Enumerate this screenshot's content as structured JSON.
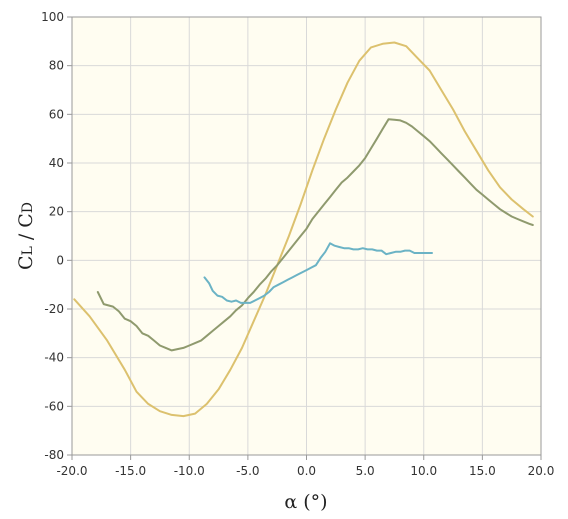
{
  "chart_data": {
    "type": "line",
    "title": "",
    "xlabel": "α (°)",
    "ylabel_main": "C",
    "ylabel_sub1": "L",
    "ylabel_sep": " / C",
    "ylabel_sub2": "D",
    "xlim": [
      -20,
      20
    ],
    "ylim": [
      -80,
      100
    ],
    "x_ticks": [
      "-20.0",
      "-15.0",
      "-10.0",
      "-5.0",
      "0.0",
      "5.0",
      "10.0",
      "15.0",
      "20.0"
    ],
    "y_ticks": [
      "100",
      "80",
      "60",
      "40",
      "20",
      "0",
      "-20",
      "-40",
      "-60",
      "-80"
    ],
    "grid": true,
    "background_color": "#fffdf1",
    "grid_color": "#d9d9d9",
    "series": [
      {
        "color": "#dcc16e",
        "x": [
          -19.8,
          -18.5,
          -17,
          -15.5,
          -14.5,
          -13.5,
          -12.5,
          -11.5,
          -10.5,
          -9.5,
          -8.5,
          -7.5,
          -6.5,
          -5.5,
          -4.5,
          -3.5,
          -2.5,
          -1.5,
          -0.5,
          0.5,
          1.5,
          2.5,
          3.5,
          4.5,
          5.5,
          6.5,
          7.5,
          8.5,
          9.5,
          10.5,
          11.5,
          12.5,
          13.5,
          14.5,
          15.5,
          16.5,
          17.5,
          18.5,
          19.3
        ],
        "y": [
          -16,
          -23,
          -33,
          -45,
          -54,
          -59,
          -62,
          -63.5,
          -64,
          -63,
          -59,
          -53,
          -45,
          -36,
          -25,
          -14,
          -2,
          10,
          23,
          37,
          50,
          62,
          73,
          82,
          87.5,
          89,
          89.5,
          88,
          83,
          78,
          70,
          62,
          53,
          45,
          37,
          30,
          25,
          21,
          18
        ]
      },
      {
        "color": "#8f9a6e",
        "x": [
          -17.8,
          -17.3,
          -16.5,
          -16,
          -15.5,
          -15,
          -14.5,
          -14,
          -13.5,
          -13,
          -12.5,
          -12,
          -11.5,
          -11,
          -10.5,
          -10,
          -9.5,
          -9,
          -8.5,
          -8,
          -7.5,
          -7,
          -6.5,
          -6,
          -5.5,
          -5,
          -4.5,
          -4,
          -3.5,
          -3,
          -2.5,
          -2,
          -1.5,
          -1,
          -0.5,
          0,
          0.5,
          1,
          1.5,
          2,
          2.5,
          3,
          3.5,
          4,
          4.5,
          5,
          5.5,
          6,
          6.5,
          7,
          7.5,
          8,
          8.5,
          9,
          9.5,
          10,
          10.5,
          11,
          11.5,
          12,
          12.5,
          13,
          13.5,
          14,
          14.5,
          15,
          15.5,
          16,
          16.5,
          17,
          17.5,
          18,
          18.5,
          19,
          19.3
        ],
        "y": [
          -13,
          -18,
          -19,
          -21,
          -24,
          -25,
          -27,
          -30,
          -31,
          -33,
          -35,
          -36,
          -37,
          -36.5,
          -36,
          -35,
          -34,
          -33,
          -31,
          -29,
          -27,
          -25,
          -23,
          -20.5,
          -18.5,
          -15.5,
          -13,
          -10,
          -7.5,
          -4.5,
          -2,
          1,
          4,
          7,
          10,
          13,
          17,
          20,
          23,
          26,
          29,
          32,
          34,
          36.5,
          39,
          42,
          46,
          50,
          54,
          58,
          57.8,
          57.5,
          56.5,
          55,
          53,
          51,
          49,
          46.5,
          44,
          41.5,
          39,
          36.5,
          34,
          31.5,
          29,
          27,
          25,
          23,
          21,
          19.5,
          18,
          17,
          16,
          15,
          14.5
        ]
      },
      {
        "color": "#6bb3c5",
        "x": [
          -8.7,
          -8.3,
          -8,
          -7.6,
          -7.2,
          -6.8,
          -6.4,
          -6,
          -5.6,
          -5.2,
          -4.8,
          -4.4,
          -4,
          -3.6,
          -3.2,
          -2.8,
          -2.4,
          -2,
          -1.6,
          -1.2,
          -0.8,
          -0.4,
          0,
          0.4,
          0.8,
          1.2,
          1.6,
          2,
          2.4,
          2.8,
          3.2,
          3.6,
          4,
          4.4,
          4.8,
          5.2,
          5.6,
          6,
          6.4,
          6.8,
          7.2,
          7.6,
          8,
          8.4,
          8.8,
          9.2,
          9.6,
          10,
          10.4,
          10.7
        ],
        "y": [
          -7,
          -9.5,
          -12.5,
          -14.5,
          -15,
          -16.5,
          -17,
          -16.5,
          -17.5,
          -17.5,
          -17.5,
          -16.5,
          -15.5,
          -14.5,
          -13,
          -11,
          -10,
          -9,
          -8,
          -7,
          -6,
          -5,
          -4,
          -3,
          -2,
          1,
          3.5,
          7,
          6,
          5.5,
          5,
          5,
          4.5,
          4.5,
          5,
          4.5,
          4.5,
          4,
          4,
          2.5,
          3,
          3.5,
          3.5,
          4,
          4,
          3,
          3,
          3,
          3,
          3
        ]
      }
    ]
  }
}
